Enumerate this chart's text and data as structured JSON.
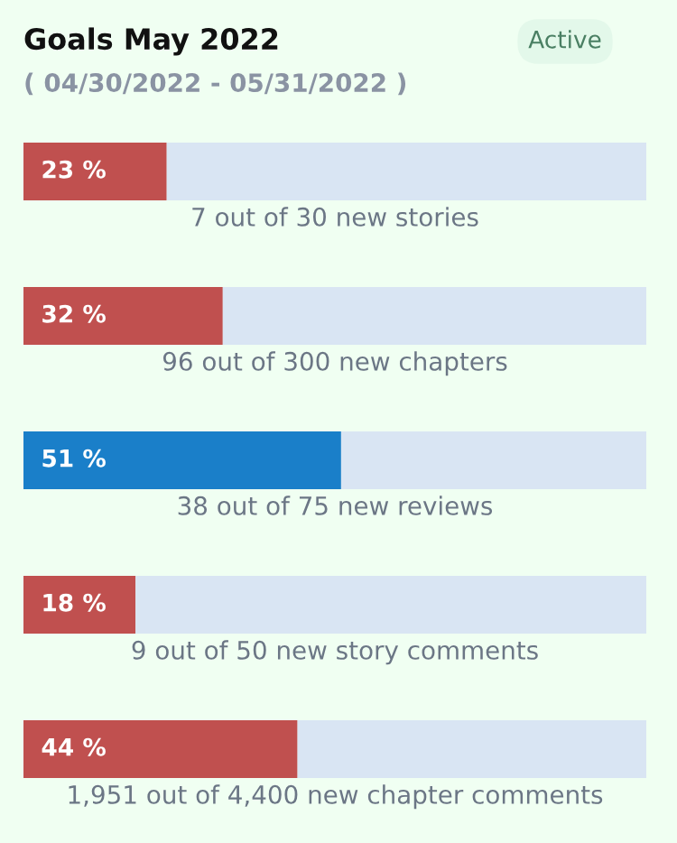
{
  "chart_data": {
    "type": "bar",
    "orientation": "horizontal",
    "stacked": true,
    "title": "Goals May 2022",
    "subtitle": "( 04/30/2022 - 05/31/2022 )",
    "annotations": [
      "Active"
    ],
    "categories": [
      "7 out of 30 new stories",
      "96 out of 300 new chapters",
      "38 out of 75 new reviews",
      "9 out of 50 new story comments",
      "1,951 out of 4,400 new chapter comments"
    ],
    "series": [
      {
        "colors": [
          "#c0504f",
          "#c0504f",
          "#1a7fc9",
          "#c0504f",
          "#c0504f"
        ],
        "values": [
          23,
          32,
          51,
          18,
          44
        ],
        "value_labels": [
          "23 %",
          "32 %",
          "51 %",
          "18 %",
          "44 %"
        ]
      },
      {
        "color": "#d9e5f3",
        "values": [
          77,
          68,
          49,
          82,
          56
        ]
      }
    ]
  }
}
